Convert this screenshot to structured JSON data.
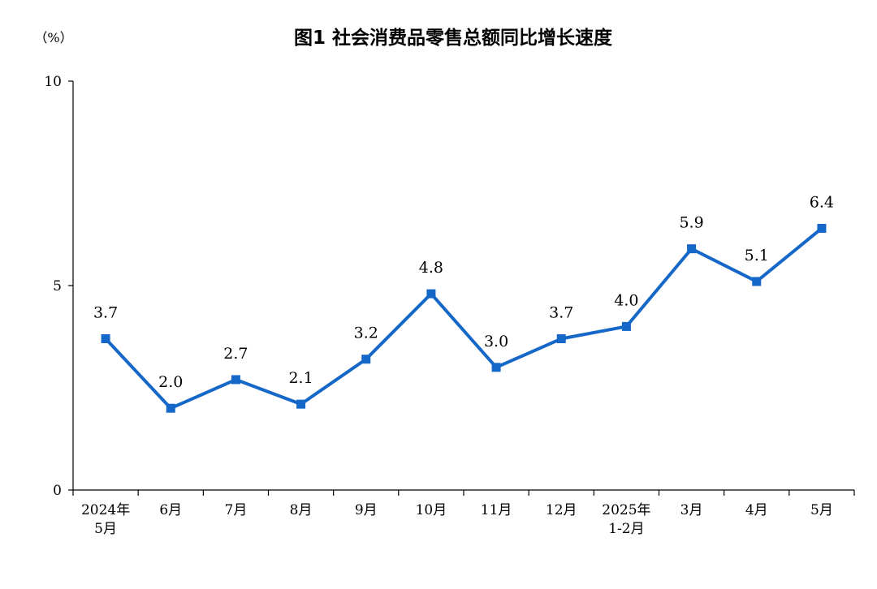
{
  "chart_data": {
    "type": "line",
    "title": "图1  社会消费品零售总额同比增长速度",
    "ylabel": "（%）",
    "xlabel": "",
    "ylim": [
      0,
      10
    ],
    "yticks": [
      "0",
      "5",
      "10"
    ],
    "grid": false,
    "categories": [
      [
        "2024年",
        "5月"
      ],
      [
        "6月"
      ],
      [
        "7月"
      ],
      [
        "8月"
      ],
      [
        "9月"
      ],
      [
        "10月"
      ],
      [
        "11月"
      ],
      [
        "12月"
      ],
      [
        "2025年",
        "1-2月"
      ],
      [
        "3月"
      ],
      [
        "4月"
      ],
      [
        "5月"
      ]
    ],
    "series": [
      {
        "values": [
          3.7,
          2.0,
          2.7,
          2.1,
          3.2,
          4.8,
          3.0,
          3.7,
          4.0,
          5.9,
          5.1,
          6.4
        ],
        "labels": [
          "3.7",
          "2.0",
          "2.7",
          "2.1",
          "3.2",
          "4.8",
          "3.0",
          "3.7",
          "4.0",
          "5.9",
          "5.1",
          "6.4"
        ],
        "color": "#1668c8"
      }
    ]
  }
}
